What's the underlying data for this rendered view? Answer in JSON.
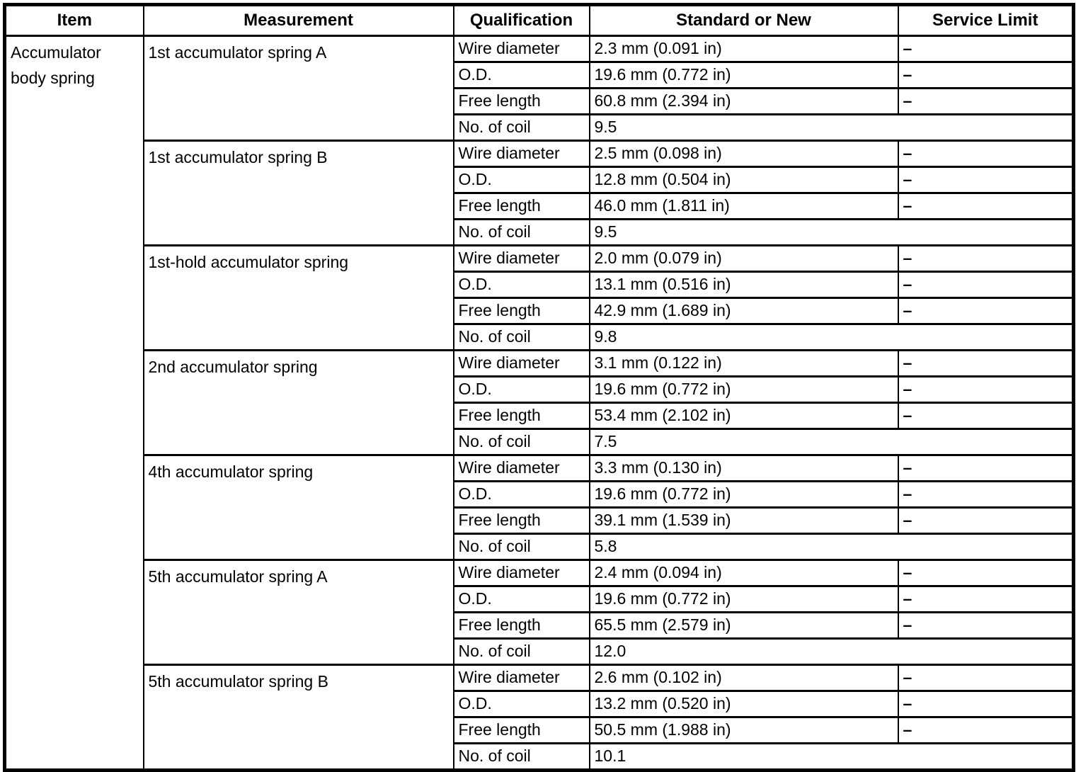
{
  "table": {
    "headers": [
      "Item",
      "Measurement",
      "Qualification",
      "Standard or New",
      "Service Limit"
    ],
    "item": "Accumulator body spring",
    "dash": "–",
    "springs": [
      {
        "name": "1st accumulator spring A",
        "rows": [
          {
            "qualification": "Wire diameter",
            "standard": "2.3 mm (0.091 in)",
            "service_limit": "–"
          },
          {
            "qualification": "O.D.",
            "standard": "19.6 mm (0.772 in)",
            "service_limit": "–"
          },
          {
            "qualification": "Free length",
            "standard": "60.8 mm (2.394 in)",
            "service_limit": "–"
          },
          {
            "qualification": "No. of coil",
            "standard": "9.5",
            "service_limit": null
          }
        ]
      },
      {
        "name": "1st accumulator spring B",
        "rows": [
          {
            "qualification": "Wire diameter",
            "standard": "2.5 mm (0.098 in)",
            "service_limit": "–"
          },
          {
            "qualification": "O.D.",
            "standard": "12.8 mm (0.504 in)",
            "service_limit": "–"
          },
          {
            "qualification": "Free length",
            "standard": "46.0 mm (1.811 in)",
            "service_limit": "–"
          },
          {
            "qualification": "No. of coil",
            "standard": "9.5",
            "service_limit": null
          }
        ]
      },
      {
        "name": "1st-hold accumulator spring",
        "rows": [
          {
            "qualification": "Wire diameter",
            "standard": "2.0 mm (0.079 in)",
            "service_limit": "–"
          },
          {
            "qualification": "O.D.",
            "standard": "13.1 mm (0.516 in)",
            "service_limit": "–"
          },
          {
            "qualification": "Free length",
            "standard": "42.9 mm (1.689 in)",
            "service_limit": "–"
          },
          {
            "qualification": "No. of coil",
            "standard": "9.8",
            "service_limit": null
          }
        ]
      },
      {
        "name": "2nd accumulator spring",
        "rows": [
          {
            "qualification": "Wire diameter",
            "standard": "3.1 mm (0.122 in)",
            "service_limit": "–"
          },
          {
            "qualification": "O.D.",
            "standard": "19.6 mm (0.772 in)",
            "service_limit": "–"
          },
          {
            "qualification": "Free length",
            "standard": "53.4 mm (2.102 in)",
            "service_limit": "–"
          },
          {
            "qualification": "No. of coil",
            "standard": "7.5",
            "service_limit": null
          }
        ]
      },
      {
        "name": "4th accumulator spring",
        "rows": [
          {
            "qualification": "Wire diameter",
            "standard": "3.3 mm (0.130 in)",
            "service_limit": "–"
          },
          {
            "qualification": "O.D.",
            "standard": "19.6 mm (0.772 in)",
            "service_limit": "–"
          },
          {
            "qualification": "Free length",
            "standard": "39.1 mm (1.539 in)",
            "service_limit": "–"
          },
          {
            "qualification": "No. of coil",
            "standard": "5.8",
            "service_limit": null
          }
        ]
      },
      {
        "name": "5th accumulator spring A",
        "rows": [
          {
            "qualification": "Wire diameter",
            "standard": "2.4 mm (0.094 in)",
            "service_limit": "–"
          },
          {
            "qualification": "O.D.",
            "standard": "19.6 mm (0.772 in)",
            "service_limit": "–"
          },
          {
            "qualification": "Free length",
            "standard": "65.5 mm (2.579 in)",
            "service_limit": "–"
          },
          {
            "qualification": "No. of coil",
            "standard": "12.0",
            "service_limit": null
          }
        ]
      },
      {
        "name": "5th accumulator spring B",
        "rows": [
          {
            "qualification": "Wire diameter",
            "standard": "2.6 mm (0.102 in)",
            "service_limit": "–"
          },
          {
            "qualification": "O.D.",
            "standard": "13.2 mm (0.520 in)",
            "service_limit": "–"
          },
          {
            "qualification": "Free length",
            "standard": "50.5 mm (1.988 in)",
            "service_limit": "–"
          },
          {
            "qualification": "No. of coil",
            "standard": "10.1",
            "service_limit": null
          }
        ]
      }
    ]
  }
}
